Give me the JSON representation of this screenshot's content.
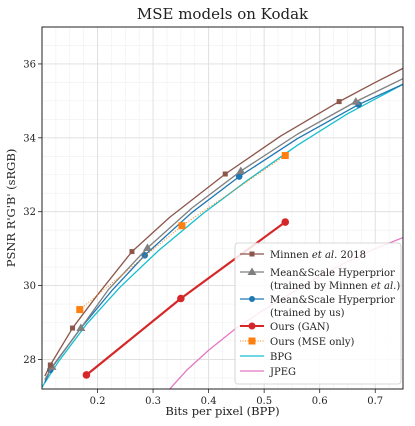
{
  "chart_data": {
    "type": "line",
    "title": "MSE models on Kodak",
    "xlabel": "Bits per pixel (BPP)",
    "ylabel": "PSNR R'G'B' (sRGB)",
    "xlim": [
      0.1,
      0.75
    ],
    "ylim": [
      27.2,
      37.0
    ],
    "xticks": [
      0.2,
      0.3,
      0.4,
      0.5,
      0.6,
      0.7
    ],
    "xtick_labels": [
      "0.2",
      "0.3",
      "0.4",
      "0.5",
      "0.6",
      "0.7"
    ],
    "yticks": [
      28,
      30,
      32,
      34,
      36
    ],
    "ytick_labels": [
      "28",
      "30",
      "32",
      "34",
      "36"
    ],
    "grid": true,
    "legend_position": "bottom-right",
    "series": [
      {
        "key": "minnen",
        "name_parts": [
          "Minnen ",
          "et al.",
          " 2018"
        ],
        "color": "#8c564b",
        "marker": "square",
        "linestyle": "solid",
        "marked": [
          [
            0.115,
            27.85
          ],
          [
            0.155,
            28.85
          ],
          [
            0.262,
            30.92
          ],
          [
            0.43,
            33.02
          ],
          [
            0.635,
            34.98
          ]
        ],
        "points": [
          [
            0.105,
            27.55
          ],
          [
            0.115,
            27.85
          ],
          [
            0.155,
            28.85
          ],
          [
            0.2,
            29.75
          ],
          [
            0.262,
            30.92
          ],
          [
            0.33,
            31.85
          ],
          [
            0.43,
            33.02
          ],
          [
            0.53,
            34.05
          ],
          [
            0.635,
            34.98
          ],
          [
            0.7,
            35.5
          ],
          [
            0.75,
            35.88
          ]
        ]
      },
      {
        "key": "meanscale_minnen",
        "name_line1": "Mean&Scale Hyperprior",
        "name_line2_parts": [
          "(trained by Minnen ",
          "et al.",
          ")"
        ],
        "color": "#7f7f7f",
        "marker": "triangle",
        "linestyle": "solid",
        "marked": [
          [
            0.118,
            27.8
          ],
          [
            0.17,
            28.85
          ],
          [
            0.29,
            31.02
          ],
          [
            0.458,
            33.1
          ],
          [
            0.665,
            34.98
          ]
        ],
        "points": [
          [
            0.105,
            27.45
          ],
          [
            0.118,
            27.8
          ],
          [
            0.17,
            28.85
          ],
          [
            0.22,
            29.9
          ],
          [
            0.29,
            31.02
          ],
          [
            0.37,
            32.1
          ],
          [
            0.458,
            33.1
          ],
          [
            0.56,
            34.1
          ],
          [
            0.665,
            34.98
          ],
          [
            0.75,
            35.6
          ]
        ]
      },
      {
        "key": "meanscale_us",
        "name_line1": "Mean&Scale Hyperprior",
        "name_line2": "(trained by us)",
        "color": "#1f77b4",
        "marker": "circle",
        "linestyle": "solid",
        "marked": [
          [
            0.115,
            27.72
          ],
          [
            0.285,
            30.82
          ],
          [
            0.455,
            32.95
          ],
          [
            0.67,
            34.9
          ]
        ],
        "points": [
          [
            0.105,
            27.38
          ],
          [
            0.115,
            27.72
          ],
          [
            0.17,
            28.85
          ],
          [
            0.225,
            29.85
          ],
          [
            0.285,
            30.82
          ],
          [
            0.37,
            31.98
          ],
          [
            0.455,
            32.95
          ],
          [
            0.56,
            33.98
          ],
          [
            0.67,
            34.9
          ],
          [
            0.75,
            35.45
          ]
        ]
      },
      {
        "key": "ours_gan",
        "name": "Ours (GAN)",
        "color": "#d62728",
        "marker": "circle",
        "linestyle": "solid",
        "marked": [
          [
            0.18,
            27.58
          ],
          [
            0.35,
            29.65
          ],
          [
            0.538,
            31.72
          ]
        ],
        "points": [
          [
            0.18,
            27.58
          ],
          [
            0.35,
            29.65
          ],
          [
            0.538,
            31.72
          ]
        ]
      },
      {
        "key": "ours_mse",
        "name": "Ours (MSE only)",
        "color": "#ff7f0e",
        "marker": "square",
        "linestyle": "dotted",
        "marked": [
          [
            0.168,
            29.35
          ],
          [
            0.352,
            31.62
          ],
          [
            0.538,
            33.52
          ]
        ],
        "points": [
          [
            0.168,
            29.35
          ],
          [
            0.352,
            31.62
          ],
          [
            0.538,
            33.52
          ]
        ]
      },
      {
        "key": "bpg",
        "name": "BPG",
        "color": "#17becf",
        "marker": "none",
        "linestyle": "solid",
        "marked": [],
        "points": [
          [
            0.1,
            27.25
          ],
          [
            0.13,
            27.95
          ],
          [
            0.18,
            28.95
          ],
          [
            0.24,
            29.95
          ],
          [
            0.31,
            30.95
          ],
          [
            0.39,
            31.95
          ],
          [
            0.47,
            32.85
          ],
          [
            0.56,
            33.8
          ],
          [
            0.65,
            34.65
          ],
          [
            0.75,
            35.45
          ]
        ]
      },
      {
        "key": "jpeg",
        "name": "JPEG",
        "color": "#e377c2",
        "marker": "none",
        "linestyle": "solid",
        "marked": [],
        "points": [
          [
            0.33,
            27.2
          ],
          [
            0.36,
            27.7
          ],
          [
            0.4,
            28.25
          ],
          [
            0.45,
            28.85
          ],
          [
            0.5,
            29.35
          ],
          [
            0.55,
            29.8
          ],
          [
            0.6,
            30.25
          ],
          [
            0.65,
            30.65
          ],
          [
            0.7,
            31.0
          ],
          [
            0.75,
            31.3
          ]
        ]
      }
    ]
  }
}
